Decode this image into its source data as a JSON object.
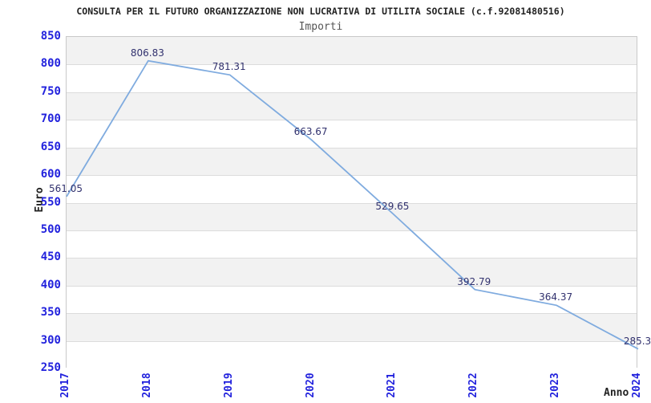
{
  "header": {
    "title": "CONSULTA PER IL FUTURO ORGANIZZAZIONE NON LUCRATIVA DI UTILITA SOCIALE (c.f.92081480516)",
    "subtitle": "Importi"
  },
  "chart_data": {
    "type": "line",
    "title": "Importi",
    "xlabel": "Anno",
    "ylabel": "Euro",
    "categories": [
      "2017",
      "2018",
      "2019",
      "2020",
      "2021",
      "2022",
      "2023",
      "2024"
    ],
    "series": [
      {
        "name": "Importi",
        "values": [
          561.05,
          806.83,
          781.31,
          663.67,
          529.65,
          392.79,
          364.37,
          285.3
        ],
        "point_labels": [
          "561.05",
          "806.83",
          "781.31",
          "663.67",
          "529.65",
          "392.79",
          "364.37",
          "285.3"
        ]
      }
    ],
    "ylim": [
      250,
      850
    ],
    "ytick_step": 50,
    "grid": "horizontal-bands",
    "legend": false,
    "colors": {
      "line": "#7fabdf",
      "tick_label": "#2222dd",
      "point_label": "#31316e",
      "band_gray": "#f2f2f2",
      "band_white": "#ffffff",
      "gridline": "#dcdcdc",
      "border": "#c9c9c9",
      "title": "#222222",
      "subtitle": "#555555",
      "axis_title": "#222222"
    }
  }
}
